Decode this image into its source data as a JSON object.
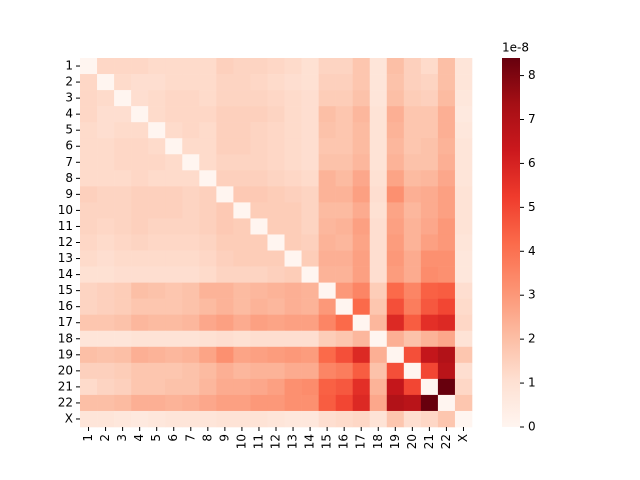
{
  "chart_data": {
    "type": "heatmap",
    "categories": [
      "1",
      "2",
      "3",
      "4",
      "5",
      "6",
      "7",
      "8",
      "9",
      "10",
      "11",
      "12",
      "13",
      "14",
      "15",
      "16",
      "17",
      "18",
      "19",
      "20",
      "21",
      "22",
      "X"
    ],
    "values": [
      [
        0,
        1.3,
        1.3,
        1.3,
        1.2,
        1.2,
        1.2,
        1.2,
        1.5,
        1.4,
        1.4,
        1.3,
        1.2,
        1.0,
        1.4,
        1.4,
        1.8,
        0.8,
        2.0,
        1.5,
        1.2,
        2.0,
        0.8
      ],
      [
        1.3,
        0,
        1.2,
        1.1,
        1.1,
        1.2,
        1.2,
        1.2,
        1.4,
        1.4,
        1.3,
        1.2,
        1.1,
        1.0,
        1.5,
        1.5,
        1.8,
        0.8,
        1.9,
        1.5,
        1.4,
        2.0,
        0.8
      ],
      [
        1.3,
        1.2,
        0,
        1.1,
        1.2,
        1.3,
        1.3,
        1.2,
        1.4,
        1.4,
        1.4,
        1.3,
        1.2,
        1.1,
        1.6,
        1.6,
        1.9,
        0.8,
        2.0,
        1.6,
        1.5,
        2.1,
        0.7
      ],
      [
        1.3,
        1.1,
        1.1,
        0,
        1.2,
        1.3,
        1.3,
        1.3,
        1.5,
        1.5,
        1.5,
        1.4,
        1.2,
        1.1,
        2.0,
        1.8,
        2.2,
        0.9,
        2.4,
        1.8,
        1.8,
        2.4,
        0.6
      ],
      [
        1.2,
        1.1,
        1.2,
        1.2,
        0,
        1.2,
        1.3,
        1.2,
        1.5,
        1.5,
        1.4,
        1.3,
        1.2,
        1.1,
        1.9,
        1.8,
        2.1,
        0.9,
        2.3,
        1.8,
        1.8,
        2.4,
        0.7
      ],
      [
        1.2,
        1.2,
        1.3,
        1.3,
        1.2,
        0,
        1.2,
        1.2,
        1.5,
        1.5,
        1.4,
        1.3,
        1.2,
        1.1,
        1.8,
        1.8,
        2.1,
        0.9,
        2.2,
        1.8,
        1.9,
        2.3,
        0.8
      ],
      [
        1.2,
        1.2,
        1.3,
        1.3,
        1.3,
        1.2,
        0,
        1.2,
        1.4,
        1.4,
        1.4,
        1.3,
        1.2,
        1.1,
        1.9,
        1.9,
        2.2,
        0.9,
        2.3,
        1.9,
        1.9,
        2.4,
        0.8
      ],
      [
        1.2,
        1.2,
        1.2,
        1.3,
        1.2,
        1.2,
        1.2,
        0,
        1.5,
        1.5,
        1.5,
        1.4,
        1.3,
        1.2,
        2.3,
        2.1,
        2.6,
        1.0,
        2.7,
        2.1,
        2.2,
        2.6,
        0.8
      ],
      [
        1.5,
        1.4,
        1.4,
        1.5,
        1.5,
        1.5,
        1.4,
        1.5,
        0,
        1.7,
        1.7,
        1.6,
        1.5,
        1.4,
        2.3,
        2.3,
        2.8,
        1.1,
        3.2,
        2.4,
        2.5,
        2.8,
        0.9
      ],
      [
        1.4,
        1.4,
        1.4,
        1.5,
        1.5,
        1.5,
        1.4,
        1.5,
        1.7,
        0,
        1.6,
        1.6,
        1.6,
        1.4,
        2.1,
        2.1,
        2.5,
        1.0,
        2.7,
        2.2,
        2.5,
        2.8,
        0.9
      ],
      [
        1.4,
        1.3,
        1.4,
        1.5,
        1.4,
        1.4,
        1.4,
        1.5,
        1.7,
        1.6,
        0,
        1.6,
        1.6,
        1.4,
        2.2,
        2.3,
        2.8,
        1.1,
        2.8,
        2.3,
        2.6,
        3.0,
        0.9
      ],
      [
        1.3,
        1.2,
        1.3,
        1.4,
        1.3,
        1.3,
        1.3,
        1.4,
        1.6,
        1.6,
        1.6,
        0,
        1.6,
        1.5,
        2.3,
        2.2,
        2.7,
        1.1,
        2.9,
        2.3,
        2.8,
        3.0,
        0.8
      ],
      [
        1.2,
        1.1,
        1.2,
        1.2,
        1.2,
        1.2,
        1.2,
        1.3,
        1.5,
        1.6,
        1.6,
        1.6,
        0,
        1.6,
        2.4,
        2.4,
        2.8,
        1.1,
        3.0,
        2.5,
        3.2,
        3.2,
        0.7
      ],
      [
        1.0,
        1.0,
        1.1,
        1.1,
        1.1,
        1.1,
        1.1,
        1.2,
        1.4,
        1.4,
        1.4,
        1.5,
        1.6,
        0,
        2.3,
        2.3,
        2.8,
        1.1,
        2.9,
        2.5,
        3.3,
        3.2,
        0.7
      ],
      [
        1.4,
        1.5,
        1.6,
        2.0,
        1.9,
        1.8,
        1.9,
        2.3,
        2.3,
        2.1,
        2.2,
        2.3,
        2.4,
        2.3,
        0,
        3.0,
        3.5,
        1.6,
        4.2,
        3.5,
        4.4,
        4.5,
        1.1
      ],
      [
        1.4,
        1.5,
        1.6,
        1.8,
        1.8,
        1.8,
        1.9,
        2.1,
        2.3,
        2.1,
        2.3,
        2.2,
        2.4,
        2.3,
        3.0,
        0,
        4.2,
        1.8,
        4.8,
        3.7,
        4.6,
        5.0,
        1.2
      ],
      [
        1.8,
        1.8,
        1.9,
        2.2,
        2.1,
        2.1,
        2.2,
        2.6,
        2.8,
        2.5,
        2.8,
        2.7,
        2.8,
        2.8,
        3.5,
        4.2,
        0,
        2.2,
        5.8,
        4.5,
        5.6,
        5.8,
        1.3
      ],
      [
        0.8,
        0.8,
        0.8,
        0.9,
        0.9,
        0.9,
        0.9,
        1.0,
        1.1,
        1.0,
        1.1,
        1.1,
        1.1,
        1.1,
        1.6,
        1.8,
        2.2,
        0,
        2.4,
        1.9,
        2.3,
        2.6,
        0.9
      ],
      [
        2.0,
        1.9,
        2.0,
        2.4,
        2.3,
        2.2,
        2.3,
        2.7,
        3.2,
        2.7,
        2.8,
        2.9,
        3.0,
        2.9,
        4.2,
        4.8,
        5.8,
        2.4,
        0,
        4.8,
        6.5,
        7.0,
        1.8
      ],
      [
        1.5,
        1.5,
        1.6,
        1.8,
        1.8,
        1.8,
        1.9,
        2.1,
        2.4,
        2.2,
        2.3,
        2.3,
        2.5,
        2.5,
        3.5,
        3.7,
        4.5,
        1.9,
        4.8,
        0,
        5.0,
        6.8,
        1.1
      ],
      [
        1.2,
        1.4,
        1.5,
        1.8,
        1.8,
        1.9,
        1.9,
        2.2,
        2.5,
        2.5,
        2.6,
        2.8,
        3.2,
        3.3,
        4.4,
        4.6,
        5.6,
        2.3,
        6.5,
        5.0,
        0,
        8.4,
        1.3
      ],
      [
        2.0,
        2.0,
        2.1,
        2.4,
        2.4,
        2.3,
        2.4,
        2.6,
        2.8,
        2.8,
        3.0,
        3.0,
        3.2,
        3.2,
        4.5,
        5.0,
        5.8,
        2.6,
        7.0,
        6.8,
        8.4,
        0,
        1.8
      ],
      [
        0.8,
        0.8,
        0.7,
        0.6,
        0.7,
        0.8,
        0.8,
        0.8,
        0.9,
        0.9,
        0.9,
        0.8,
        0.7,
        0.7,
        1.1,
        1.2,
        1.3,
        0.9,
        1.8,
        1.1,
        1.3,
        1.8,
        0
      ]
    ],
    "cmap": [
      "#fff5f0",
      "#fee0d2",
      "#fcbba1",
      "#fc9272",
      "#fb6a4a",
      "#ef3b2c",
      "#cb181d",
      "#a50f15",
      "#67000d"
    ],
    "zlim": [
      0,
      8.4
    ],
    "zticks": [
      0,
      1,
      2,
      3,
      4,
      5,
      6,
      7,
      8
    ],
    "z_offset_label": "1e-8"
  }
}
